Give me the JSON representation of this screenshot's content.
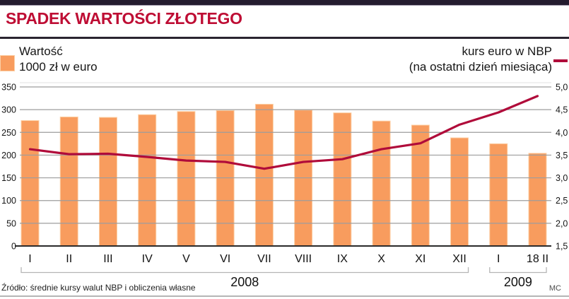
{
  "header": {
    "title": "SPADEK WARTOŚCI ZŁOTEGO"
  },
  "legend": {
    "bars_label_line1": "Wartość",
    "bars_label_line2": "1000 zł w euro",
    "line_label_line1": "kurs euro w NBP",
    "line_label_line2": "(na ostatni dzień miesiąca)"
  },
  "footer": {
    "source": "Źródło: średnie kursy walut NBP i obliczenia własne",
    "credit": "MC"
  },
  "colors": {
    "title": "#be0d34",
    "bar": "#f89c5e",
    "bar_border": "#fcd0a6",
    "line": "#b00b3a",
    "top_bar": "#241c2f"
  },
  "chart_data": {
    "type": "bar",
    "categories": [
      "I",
      "II",
      "III",
      "IV",
      "V",
      "VI",
      "VII",
      "VIII",
      "IX",
      "X",
      "XI",
      "XII",
      "I",
      "18 II"
    ],
    "group_labels": [
      {
        "label": "2008",
        "span": [
          0,
          11
        ]
      },
      {
        "label": "2009",
        "span": [
          12,
          13
        ]
      }
    ],
    "series": [
      {
        "name": "Wartość 1000 zł w euro",
        "type": "bar",
        "axis": "left",
        "values": [
          276,
          284,
          283,
          289,
          296,
          298,
          312,
          299,
          293,
          275,
          266,
          238,
          225,
          204
        ]
      },
      {
        "name": "kurs euro w NBP (na ostatni dzień miesiąca)",
        "type": "line",
        "axis": "right",
        "values": [
          3.63,
          3.52,
          3.53,
          3.46,
          3.38,
          3.35,
          3.2,
          3.35,
          3.41,
          3.63,
          3.76,
          4.17,
          4.44,
          4.8
        ]
      }
    ],
    "left_axis": {
      "min": 0,
      "max": 350,
      "step": 50,
      "ticks": [
        "0",
        "50",
        "100",
        "150",
        "200",
        "250",
        "300",
        "350"
      ]
    },
    "right_axis": {
      "min": 1.5,
      "max": 5.0,
      "step": 0.5,
      "ticks": [
        "1,5",
        "2,0",
        "2,5",
        "3,0",
        "3,5",
        "4,0",
        "4,5",
        "5,0"
      ]
    },
    "grid": true,
    "legend_position": "top"
  }
}
